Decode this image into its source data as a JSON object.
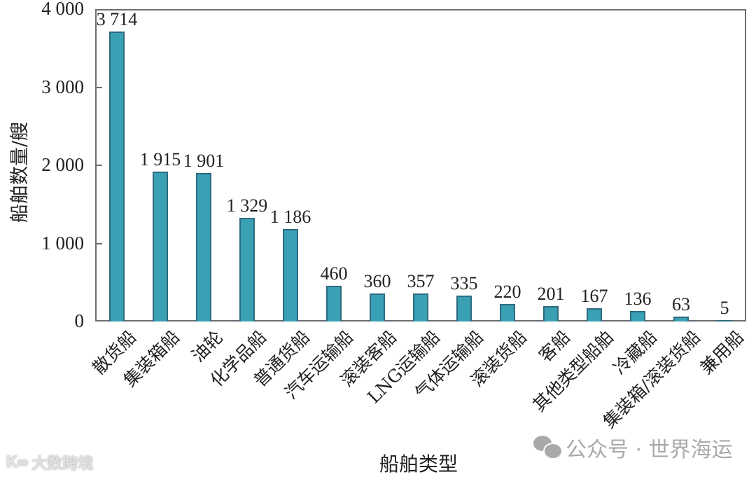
{
  "chart_data": {
    "type": "bar",
    "title": "",
    "xlabel": "船舶类型",
    "ylabel": "船舶数量/艘",
    "ylim": [
      0,
      4000
    ],
    "yticks": [
      0,
      1000,
      2000,
      3000,
      4000
    ],
    "ytick_labels": [
      "0",
      "1 000",
      "2 000",
      "3 000",
      "4 000"
    ],
    "grid": false,
    "legend": null,
    "bar_color": "#3aa0b4",
    "bar_edge_color": "#2f6b80",
    "categories": [
      "散货船",
      "集装箱船",
      "油轮",
      "化学品船",
      "普通货船",
      "汽车运输船",
      "滚装客船",
      "LNG运输船",
      "气体运输船",
      "滚装货船",
      "客船",
      "其他类型船舶",
      "冷藏船",
      "集装箱/滚装货船",
      "兼用船"
    ],
    "values": [
      3714,
      1915,
      1901,
      1329,
      1186,
      460,
      360,
      357,
      335,
      220,
      201,
      167,
      136,
      63,
      5
    ],
    "value_labels": [
      "3 714",
      "1 915",
      "1 901",
      "1 329",
      "1 186",
      "460",
      "360",
      "357",
      "335",
      "220",
      "201",
      "167",
      "136",
      "63",
      "5"
    ]
  },
  "watermarks": {
    "right": "公众号 · 世界海运",
    "left": "大数跨境",
    "left_logo": "K∞"
  }
}
